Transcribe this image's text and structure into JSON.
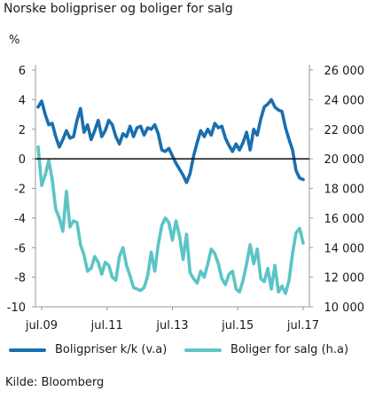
{
  "chart_data": {
    "type": "line",
    "title": "Norske boligpriser og boliger for salg",
    "left_unit": "%",
    "source": "Kilde: Bloomberg",
    "x_labels": [
      "jul.09",
      "jul.11",
      "jul.13",
      "jul.15",
      "jul.17"
    ],
    "left_axis": {
      "min": -10,
      "max": 6,
      "ticks": [
        6,
        4,
        2,
        0,
        -2,
        -4,
        -6,
        -8,
        -10
      ]
    },
    "right_axis": {
      "min": 10000,
      "max": 26000,
      "tick_labels": [
        "26 000",
        "24 000",
        "22 000",
        "20 000",
        "18 000",
        "16 000",
        "14 000",
        "12 000",
        "10 000"
      ]
    },
    "series": [
      {
        "name": "Boligpriser k/k (v.a)",
        "axis": "left",
        "color": "#1a6fae",
        "values": [
          3.5,
          3.9,
          3.0,
          2.3,
          2.4,
          1.5,
          0.8,
          1.3,
          1.9,
          1.4,
          1.5,
          2.6,
          3.4,
          1.8,
          2.3,
          1.3,
          1.9,
          2.6,
          1.5,
          1.9,
          2.6,
          2.3,
          1.5,
          1.0,
          1.7,
          1.5,
          2.2,
          1.5,
          2.1,
          2.2,
          1.6,
          2.1,
          2.0,
          2.3,
          1.7,
          0.6,
          0.5,
          0.7,
          0.2,
          -0.3,
          -0.7,
          -1.1,
          -1.6,
          -1.0,
          0.2,
          1.1,
          1.9,
          1.5,
          2.0,
          1.6,
          2.4,
          2.1,
          2.2,
          1.4,
          0.9,
          0.5,
          1.0,
          0.6,
          1.1,
          1.8,
          0.6,
          2.0,
          1.6,
          2.7,
          3.5,
          3.7,
          4.0,
          3.5,
          3.3,
          3.2,
          2.1,
          1.3,
          0.6,
          -0.8,
          -1.3,
          -1.4
        ]
      },
      {
        "name": "Boliger for salg (h.a)",
        "axis": "right",
        "color": "#5cc4c5",
        "values": [
          20800,
          18200,
          18900,
          19900,
          18600,
          16600,
          16000,
          15100,
          17800,
          15400,
          15800,
          15700,
          14200,
          13500,
          12400,
          12600,
          13400,
          13000,
          12200,
          13000,
          12800,
          12000,
          11800,
          13400,
          14000,
          12800,
          12100,
          11300,
          11200,
          11100,
          11300,
          12100,
          13700,
          12400,
          14200,
          15500,
          16000,
          15700,
          14500,
          15800,
          14800,
          13200,
          14900,
          12300,
          11900,
          11600,
          12400,
          12000,
          12900,
          13900,
          13600,
          12900,
          11900,
          11500,
          12200,
          12400,
          11200,
          11000,
          11800,
          12900,
          14200,
          12900,
          13900,
          11900,
          11700,
          12600,
          11200,
          12800,
          11000,
          11400,
          10900,
          11800,
          13600,
          15000,
          15300,
          14300
        ]
      }
    ]
  }
}
